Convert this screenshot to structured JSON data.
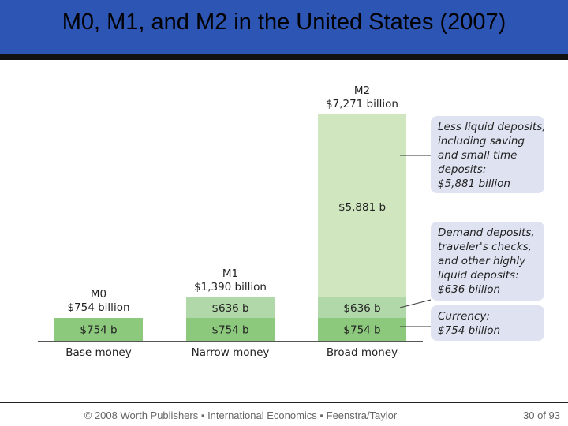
{
  "slide": {
    "title": "M0, M1, and M2 in the United States (2007)",
    "footer": "© 2008 Worth Publishers ▪ International Economics ▪ Feenstra/Taylor",
    "page_current": "30",
    "page_of": "of",
    "page_total": "93"
  },
  "colors": {
    "title_bar": "#2d55b4",
    "currency": "#8cc97d",
    "demand_deposits": "#b1d8a8",
    "less_liquid": "#cfe6bf",
    "note_box": "#dfe3f1"
  },
  "chart_data": {
    "type": "bar",
    "stacked": true,
    "unit": "billion",
    "categories": [
      "Base money",
      "Narrow money",
      "Broad money"
    ],
    "totals": [
      {
        "name": "M0",
        "value_label": "$754 billion",
        "value": 754
      },
      {
        "name": "M1",
        "value_label": "$1,390 billion",
        "value": 1390
      },
      {
        "name": "M2",
        "value_label": "$7,271 billion",
        "value": 7271
      }
    ],
    "series": [
      {
        "key": "currency",
        "values": [
          754,
          754,
          754
        ],
        "labels": [
          "$754 b",
          "$754 b",
          "$754 b"
        ]
      },
      {
        "key": "demand_deposits",
        "values": [
          0,
          636,
          636
        ],
        "labels": [
          "",
          "$636 b",
          "$636 b"
        ]
      },
      {
        "key": "less_liquid",
        "values": [
          0,
          0,
          5881
        ],
        "labels": [
          "",
          "",
          "$5,881 b"
        ]
      }
    ],
    "annotations": [
      {
        "series": "less_liquid",
        "lines": [
          "Less liquid deposits,",
          "including saving",
          "and small time",
          "deposits:",
          "$5,881 billion"
        ]
      },
      {
        "series": "demand_deposits",
        "lines": [
          "Demand deposits,",
          "traveler's checks,",
          "and other highly",
          "liquid deposits:",
          "$636 billion"
        ]
      },
      {
        "series": "currency",
        "lines": [
          "Currency:",
          "$754 billion"
        ]
      }
    ]
  }
}
